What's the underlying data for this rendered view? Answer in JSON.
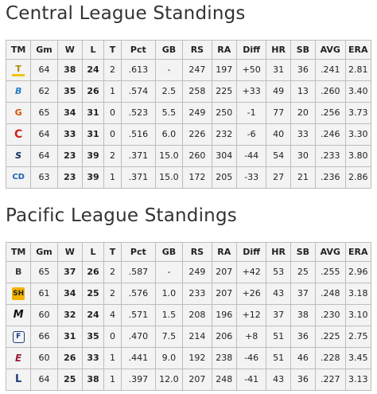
{
  "central": {
    "title": "Central League Standings",
    "columns": [
      "TM",
      "Gm",
      "W",
      "L",
      "T",
      "Pct",
      "GB",
      "RS",
      "RA",
      "Diff",
      "HR",
      "SB",
      "AVG",
      "ERA"
    ],
    "rows": [
      {
        "logo": "tigers-logo",
        "glyph": "T",
        "gm": "64",
        "w": "38",
        "l": "24",
        "t": "2",
        "pct": ".613",
        "gb": "-",
        "rs": "247",
        "ra": "197",
        "diff": "+50",
        "hr": "31",
        "sb": "36",
        "avg": ".241",
        "era": "2.81"
      },
      {
        "logo": "baystars-logo",
        "glyph": "B",
        "gm": "62",
        "w": "35",
        "l": "26",
        "t": "1",
        "pct": ".574",
        "gb": "2.5",
        "rs": "258",
        "ra": "225",
        "diff": "+33",
        "hr": "49",
        "sb": "13",
        "avg": ".260",
        "era": "3.40"
      },
      {
        "logo": "giants-logo",
        "glyph": "G",
        "gm": "65",
        "w": "34",
        "l": "31",
        "t": "0",
        "pct": ".523",
        "gb": "5.5",
        "rs": "249",
        "ra": "250",
        "diff": "-1",
        "hr": "77",
        "sb": "20",
        "avg": ".256",
        "era": "3.73"
      },
      {
        "logo": "carp-logo",
        "glyph": "C",
        "gm": "64",
        "w": "33",
        "l": "31",
        "t": "0",
        "pct": ".516",
        "gb": "6.0",
        "rs": "226",
        "ra": "232",
        "diff": "-6",
        "hr": "40",
        "sb": "33",
        "avg": ".246",
        "era": "3.30"
      },
      {
        "logo": "swallows-logo",
        "glyph": "S",
        "gm": "64",
        "w": "23",
        "l": "39",
        "t": "2",
        "pct": ".371",
        "gb": "15.0",
        "rs": "260",
        "ra": "304",
        "diff": "-44",
        "hr": "54",
        "sb": "30",
        "avg": ".233",
        "era": "3.80"
      },
      {
        "logo": "dragons-logo",
        "glyph": "CD",
        "gm": "63",
        "w": "23",
        "l": "39",
        "t": "1",
        "pct": ".371",
        "gb": "15.0",
        "rs": "172",
        "ra": "205",
        "diff": "-33",
        "hr": "27",
        "sb": "21",
        "avg": ".236",
        "era": "2.86"
      }
    ]
  },
  "pacific": {
    "title": "Pacific League Standings",
    "columns": [
      "TM",
      "Gm",
      "W",
      "L",
      "T",
      "Pct",
      "GB",
      "RS",
      "RA",
      "Diff",
      "HR",
      "SB",
      "AVG",
      "ERA"
    ],
    "rows": [
      {
        "logo": "buffaloes-logo",
        "glyph": "B",
        "gm": "65",
        "w": "37",
        "l": "26",
        "t": "2",
        "pct": ".587",
        "gb": "-",
        "rs": "249",
        "ra": "207",
        "diff": "+42",
        "hr": "53",
        "sb": "25",
        "avg": ".255",
        "era": "2.96"
      },
      {
        "logo": "hawks-logo",
        "glyph": "SH",
        "gm": "61",
        "w": "34",
        "l": "25",
        "t": "2",
        "pct": ".576",
        "gb": "1.0",
        "rs": "233",
        "ra": "207",
        "diff": "+26",
        "hr": "43",
        "sb": "37",
        "avg": ".248",
        "era": "3.18"
      },
      {
        "logo": "marines-logo",
        "glyph": "M",
        "gm": "60",
        "w": "32",
        "l": "24",
        "t": "4",
        "pct": ".571",
        "gb": "1.5",
        "rs": "208",
        "ra": "196",
        "diff": "+12",
        "hr": "37",
        "sb": "38",
        "avg": ".230",
        "era": "3.10"
      },
      {
        "logo": "fighters-logo",
        "glyph": "F",
        "gm": "66",
        "w": "31",
        "l": "35",
        "t": "0",
        "pct": ".470",
        "gb": "7.5",
        "rs": "214",
        "ra": "206",
        "diff": "+8",
        "hr": "51",
        "sb": "36",
        "avg": ".225",
        "era": "2.75"
      },
      {
        "logo": "eagles-logo",
        "glyph": "E",
        "gm": "60",
        "w": "26",
        "l": "33",
        "t": "1",
        "pct": ".441",
        "gb": "9.0",
        "rs": "192",
        "ra": "238",
        "diff": "-46",
        "hr": "51",
        "sb": "46",
        "avg": ".228",
        "era": "3.45"
      },
      {
        "logo": "lions-logo",
        "glyph": "L",
        "gm": "64",
        "w": "25",
        "l": "38",
        "t": "1",
        "pct": ".397",
        "gb": "12.0",
        "rs": "207",
        "ra": "248",
        "diff": "-41",
        "hr": "43",
        "sb": "36",
        "avg": ".227",
        "era": "3.13"
      }
    ]
  }
}
